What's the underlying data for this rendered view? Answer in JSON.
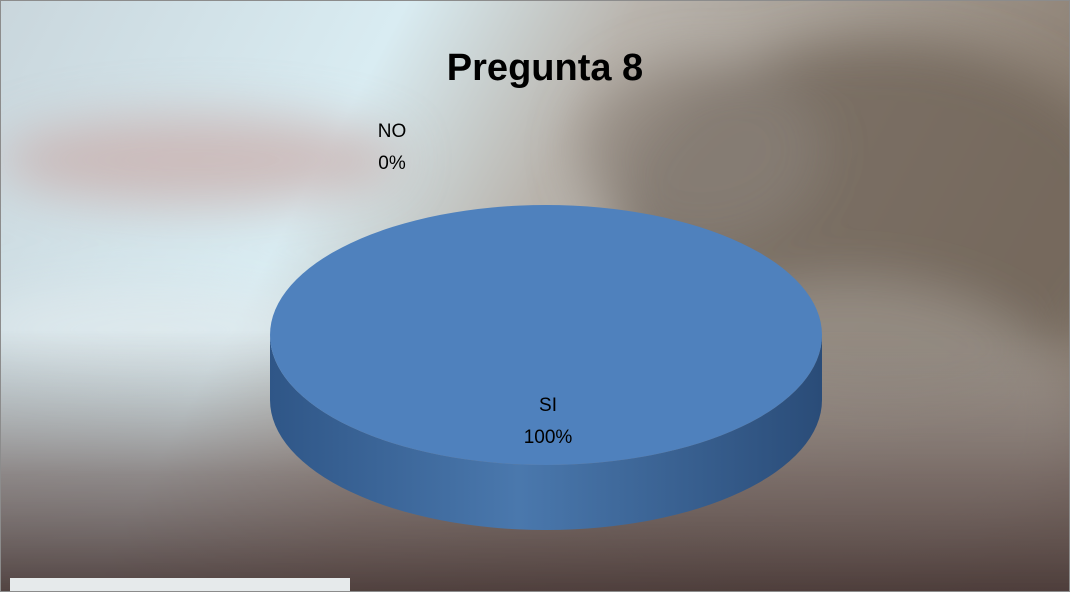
{
  "chart_data": {
    "type": "pie",
    "title": "Pregunta 8",
    "categories": [
      "SI",
      "NO"
    ],
    "values": [
      100,
      0
    ],
    "value_labels": [
      "100%",
      "0%"
    ],
    "colors": [
      "#4f81bd",
      "#c0504d"
    ]
  }
}
